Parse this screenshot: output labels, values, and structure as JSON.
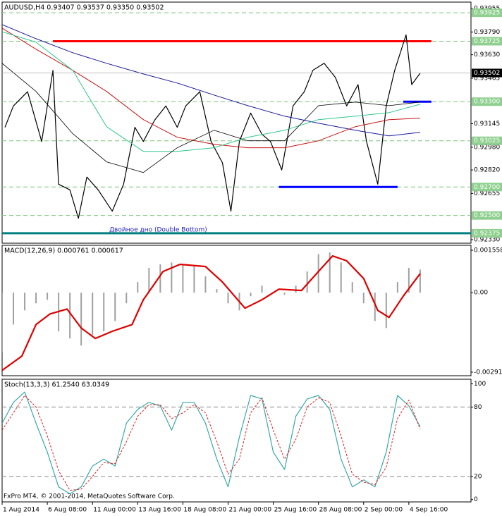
{
  "chart_data": [
    {
      "type": "line",
      "title": "AUDUSD,H4  0.93407 0.93537 0.93350 0.93502",
      "ylim": [
        0.92305,
        0.94
      ],
      "yticks": [
        {
          "value": 0.93955,
          "label": "0.93955"
        },
        {
          "value": 0.9379,
          "label": "0.93790"
        },
        {
          "value": 0.9363,
          "label": "0.93630"
        },
        {
          "value": 0.93465,
          "label": "0.93465"
        },
        {
          "value": 0.93145,
          "label": "0.93145"
        },
        {
          "value": 0.9298,
          "label": "0.92980"
        },
        {
          "value": 0.9282,
          "label": "0.92820"
        },
        {
          "value": 0.92655,
          "label": "0.92655"
        },
        {
          "value": 0.9233,
          "label": "0.92330"
        }
      ],
      "levels": [
        {
          "value": 0.93925,
          "label": "0.93925"
        },
        {
          "value": 0.93725,
          "label": "0.93725"
        },
        {
          "value": 0.933,
          "label": "0.93300"
        },
        {
          "value": 0.93025,
          "label": "0.93025"
        },
        {
          "value": 0.927,
          "label": "0.92700"
        },
        {
          "value": 0.925,
          "label": "0.92500"
        },
        {
          "value": 0.92375,
          "label": "0.92375"
        }
      ],
      "last_price": {
        "value": 0.93502,
        "label": "0.93502"
      },
      "segments": [
        {
          "value": 0.93725,
          "x": [
            18,
            152
          ],
          "color": "#ff0000"
        },
        {
          "value": 0.933,
          "x": [
            142,
            152
          ],
          "color": "#0000ff"
        },
        {
          "value": 0.927,
          "x": [
            98,
            140
          ],
          "color": "#0000ff"
        },
        {
          "value": 0.92375,
          "x": [
            0,
            166
          ],
          "color": "#007f7f"
        }
      ],
      "annotation": "Двойное дно (Double Bottom)",
      "series": [
        {
          "color": "#000000",
          "width": 1.2,
          "x": [
            1,
            4,
            9,
            14,
            18,
            20,
            24,
            27,
            30,
            34,
            39,
            43,
            47,
            50,
            54,
            58,
            62,
            65,
            70,
            74,
            78,
            81,
            84,
            88,
            92,
            95,
            99,
            103,
            107,
            110,
            114,
            118,
            122,
            126,
            129,
            133,
            136,
            139,
            143,
            145,
            148
          ],
          "values": [
            0.9312,
            0.9327,
            0.9337,
            0.9302,
            0.9352,
            0.9272,
            0.9268,
            0.9248,
            0.9277,
            0.9268,
            0.9253,
            0.9272,
            0.9312,
            0.9302,
            0.9317,
            0.9327,
            0.9312,
            0.9327,
            0.9337,
            0.9302,
            0.9287,
            0.9253,
            0.9302,
            0.9322,
            0.9307,
            0.9302,
            0.9282,
            0.9327,
            0.9337,
            0.9352,
            0.9357,
            0.9347,
            0.9327,
            0.9342,
            0.9302,
            0.9272,
            0.9327,
            0.9352,
            0.9377,
            0.9342,
            0.935
          ]
        },
        {
          "color": "#1a1a9c",
          "width": 1,
          "x": [
            0,
            12,
            25,
            37,
            50,
            62,
            75,
            87,
            100,
            112,
            125,
            137,
            148
          ],
          "values": [
            0.93842,
            0.93743,
            0.93644,
            0.9357,
            0.93495,
            0.93431,
            0.93347,
            0.93272,
            0.93198,
            0.93149,
            0.93099,
            0.9306,
            0.93084
          ]
        },
        {
          "color": "#c81414",
          "width": 1,
          "x": [
            0,
            12,
            25,
            37,
            50,
            62,
            75,
            87,
            100,
            112,
            125,
            137,
            148
          ],
          "values": [
            0.93817,
            0.93669,
            0.9352,
            0.93372,
            0.93174,
            0.9305,
            0.93,
            0.92976,
            0.92976,
            0.93025,
            0.93124,
            0.93174,
            0.93184
          ]
        },
        {
          "color": "#2ec88c",
          "width": 1,
          "x": [
            0,
            12,
            25,
            37,
            50,
            62,
            75,
            87,
            100,
            112,
            125,
            137,
            148
          ],
          "values": [
            0.93792,
            0.93718,
            0.9352,
            0.93124,
            0.92951,
            0.92951,
            0.92976,
            0.9305,
            0.93099,
            0.93174,
            0.93198,
            0.93223,
            0.93282
          ]
        },
        {
          "color": "#000000",
          "width": 0.8,
          "x": [
            0,
            12,
            25,
            37,
            50,
            62,
            75,
            87,
            100,
            112,
            125,
            137,
            148
          ],
          "values": [
            0.9357,
            0.93372,
            0.93075,
            0.92877,
            0.92802,
            0.92976,
            0.93099,
            0.93025,
            0.93025,
            0.93272,
            0.93297,
            0.93272,
            0.93297
          ]
        }
      ]
    },
    {
      "type": "macd",
      "title": "MACD(12,26,9) 0.000761 0.000617",
      "ylim": [
        -0.00305,
        0.00174
      ],
      "yticks": [
        {
          "value": 0.001558,
          "label": "0.001558"
        },
        {
          "value": 0,
          "label": "0.00"
        },
        {
          "value": -0.002919,
          "label": "-0.002919"
        }
      ],
      "series": [
        {
          "kind": "bar",
          "color": "#a0a0a0",
          "x": [
            0,
            4,
            8,
            12,
            16,
            20,
            24,
            28,
            32,
            36,
            40,
            44,
            48,
            52,
            56,
            60,
            64,
            68,
            72,
            76,
            80,
            84,
            88,
            92,
            96,
            100,
            104,
            108,
            112,
            116,
            120,
            124,
            128,
            132,
            136,
            140,
            144,
            148
          ],
          "values": [
            -0.0022,
            -0.00117,
            -0.00065,
            -0.00039,
            -0.00026,
            -0.00142,
            -0.00168,
            -0.00194,
            -0.00155,
            -0.00142,
            -0.00104,
            -0.00039,
            0.00039,
            0.00091,
            0.00104,
            0.00111,
            0.00104,
            0.00096,
            0.0006,
            0.00013,
            -0.00039,
            -0.00065,
            -0.00013,
            0.00026,
            0,
            -8e-05,
            0.00026,
            0.00078,
            0.00142,
            0.00148,
            0.00111,
            0.00039,
            -0.00039,
            -0.00104,
            -0.0013,
            0.00039,
            0.00091,
            0.00085
          ]
        },
        {
          "kind": "line",
          "color": "#dd0000",
          "width": 2.2,
          "x": [
            0,
            7,
            12,
            17,
            23,
            28,
            33,
            39,
            46,
            50,
            57,
            63,
            72,
            78,
            86,
            92,
            98,
            106,
            112,
            117,
            122,
            128,
            133,
            137,
            142,
            148
          ],
          "values": [
            -0.00285,
            -0.00233,
            -0.00117,
            -0.00078,
            -0.0006,
            -0.0013,
            -0.00168,
            -0.00142,
            -0.00117,
            -0.00026,
            0.00078,
            0.00104,
            0.00096,
            0.00039,
            -0.00057,
            -0.00026,
            0.00013,
            8e-05,
            0.00078,
            0.00135,
            0.00117,
            0.00052,
            -0.00065,
            -0.00091,
            -0.00013,
            0.0007
          ]
        }
      ]
    },
    {
      "type": "line",
      "title": "Stoch(13,3,3) 61.2540 63.0349",
      "ylim": [
        -2,
        104
      ],
      "yticks": [
        0,
        20,
        80,
        100
      ],
      "levels": [
        20,
        80
      ],
      "xlim": [
        0,
        166
      ],
      "xticks": [
        {
          "value": 0,
          "label": "1 Aug 2014"
        },
        {
          "value": 16,
          "label": "6 Aug 08:00"
        },
        {
          "value": 32,
          "label": "11 Aug 00:00"
        },
        {
          "value": 48,
          "label": "13 Aug 16:00"
        },
        {
          "value": 64,
          "label": "18 Aug 08:00"
        },
        {
          "value": 80,
          "label": "21 Aug 00:00"
        },
        {
          "value": 96,
          "label": "25 Aug 16:00"
        },
        {
          "value": 112,
          "label": "28 Aug 08:00"
        },
        {
          "value": 128,
          "label": "2 Sep 00:00"
        },
        {
          "value": 144,
          "label": "4 Sep 16:00"
        }
      ],
      "series": [
        {
          "color": "#3aa8a8",
          "width": 1.2,
          "x": [
            0,
            4,
            8,
            12,
            16,
            20,
            24,
            28,
            32,
            36,
            40,
            44,
            48,
            52,
            56,
            60,
            64,
            68,
            72,
            76,
            80,
            84,
            88,
            92,
            96,
            100,
            104,
            108,
            112,
            116,
            120,
            124,
            128,
            132,
            136,
            140,
            144,
            148
          ],
          "values": [
            66,
            84,
            93,
            66,
            41,
            11,
            5,
            11,
            29,
            35,
            29,
            66,
            78,
            84,
            81,
            60,
            84,
            84,
            66,
            35,
            11,
            54,
            90,
            87,
            41,
            26,
            72,
            87,
            90,
            78,
            35,
            11,
            17,
            11,
            41,
            90,
            81,
            63
          ]
        },
        {
          "color": "#e02020",
          "width": 1,
          "dash": true,
          "x": [
            0,
            4,
            8,
            12,
            16,
            20,
            24,
            28,
            32,
            36,
            40,
            44,
            48,
            52,
            56,
            60,
            64,
            68,
            72,
            76,
            80,
            84,
            88,
            92,
            96,
            100,
            104,
            108,
            112,
            116,
            120,
            124,
            128,
            132,
            136,
            140,
            144,
            148
          ],
          "values": [
            60,
            75,
            90,
            80,
            55,
            25,
            8,
            9,
            20,
            32,
            31,
            50,
            72,
            82,
            82,
            70,
            75,
            82,
            75,
            50,
            22,
            35,
            75,
            88,
            60,
            35,
            52,
            80,
            88,
            84,
            55,
            22,
            15,
            13,
            28,
            70,
            86,
            61
          ]
        }
      ]
    }
  ],
  "footer": "FxPro MT4, © 2001-2014, MetaQuotes Software Corp."
}
